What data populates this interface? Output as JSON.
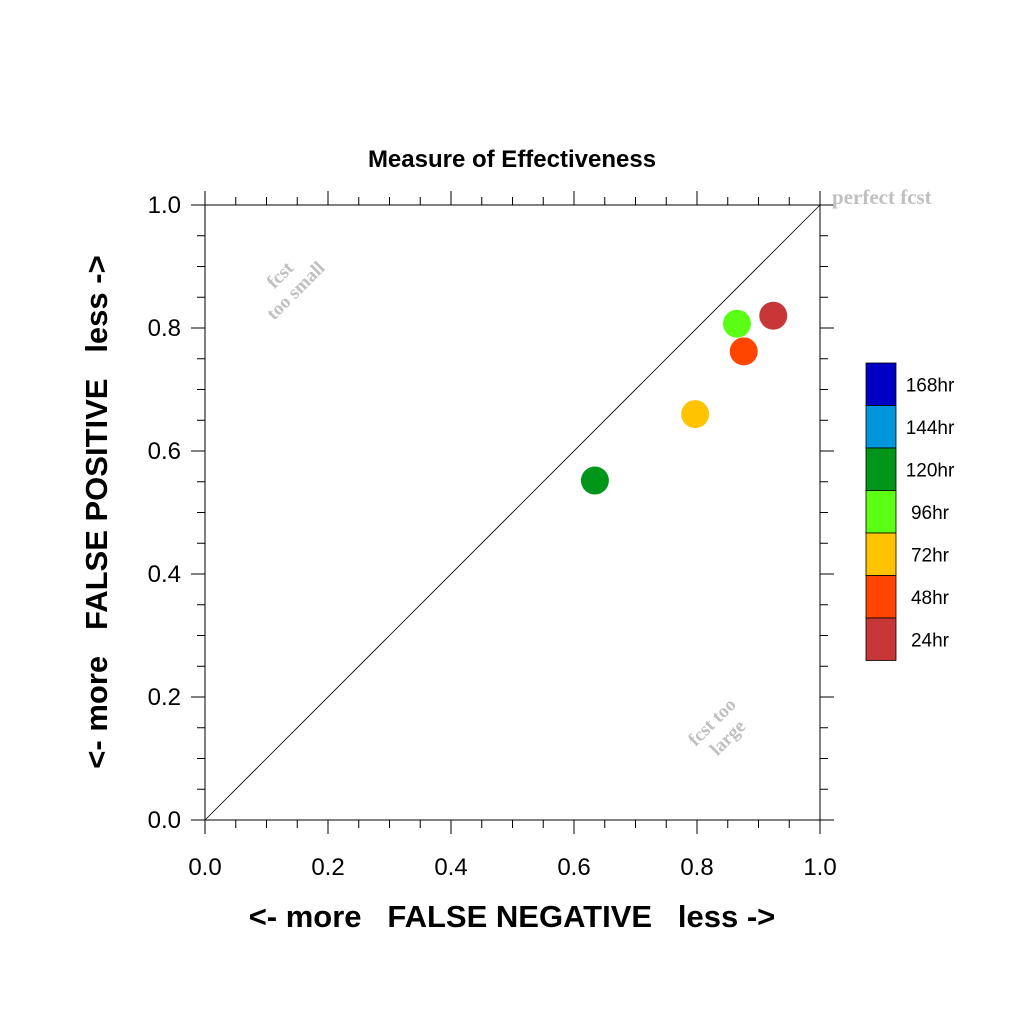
{
  "chart_data": {
    "type": "scatter",
    "title": "Measure of Effectiveness",
    "xlabel": "<- more   FALSE NEGATIVE   less ->",
    "ylabel": "<- more   FALSE POSITIVE   less ->",
    "xlim": [
      0.0,
      1.0
    ],
    "ylim": [
      0.0,
      1.0
    ],
    "x_ticks": [
      "0.0",
      "0.2",
      "0.4",
      "0.6",
      "0.8",
      "1.0"
    ],
    "y_ticks": [
      "0.0",
      "0.2",
      "0.4",
      "0.6",
      "0.8",
      "1.0"
    ],
    "grid": false,
    "diagonal_reference": true,
    "annotations": {
      "perfect": "perfect fcst",
      "too_small_line1": "fcst",
      "too_small_line2": "too small",
      "too_large_line1": "fcst too",
      "too_large_line2": "large"
    },
    "legend": {
      "placement": "right",
      "entries": [
        {
          "label": "168hr",
          "color": "#0000c4"
        },
        {
          "label": "144hr",
          "color": "#0096dc"
        },
        {
          "label": "120hr",
          "color": "#009619"
        },
        {
          "label": "96hr",
          "color": "#5aff13"
        },
        {
          "label": "72hr",
          "color": "#ffc300"
        },
        {
          "label": "48hr",
          "color": "#ff4500"
        },
        {
          "label": "24hr",
          "color": "#c83737"
        }
      ]
    },
    "points": [
      {
        "series": "120hr",
        "x": 0.634,
        "y": 0.552,
        "color": "#009619"
      },
      {
        "series": "72hr",
        "x": 0.797,
        "y": 0.66,
        "color": "#ffc300"
      },
      {
        "series": "96hr",
        "x": 0.865,
        "y": 0.807,
        "color": "#5aff13"
      },
      {
        "series": "48hr",
        "x": 0.876,
        "y": 0.762,
        "color": "#ff4500"
      },
      {
        "series": "24hr",
        "x": 0.924,
        "y": 0.82,
        "color": "#c83737"
      }
    ]
  }
}
